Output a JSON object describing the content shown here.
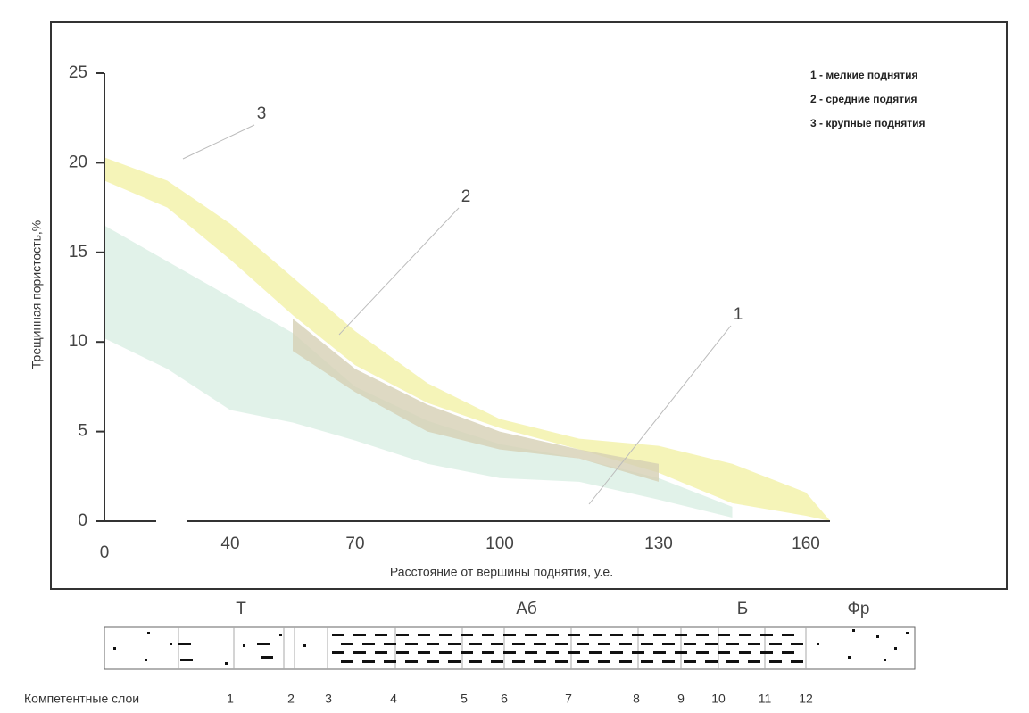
{
  "chart_data": {
    "type": "band",
    "ylabel": "Трещинная пористость,%",
    "xlabel": "Расстояние от вершины поднятия, у.е.",
    "x": [
      0,
      20,
      40,
      55,
      70,
      85,
      100,
      115,
      130,
      145,
      160,
      165
    ],
    "xticks": [
      0,
      40,
      70,
      100,
      130,
      160
    ],
    "ylim": [
      0,
      25
    ],
    "yticks": [
      0,
      5,
      10,
      15,
      20,
      25
    ],
    "series": [
      {
        "name": "1 - мелкие поднятия",
        "color": "#d9efe3",
        "upper": [
          16.5,
          14.5,
          12.5,
          10.5,
          7.5,
          5.6,
          4.3,
          3.5,
          2.4,
          0.8,
          null,
          null
        ],
        "lower": [
          10.2,
          8.5,
          6.2,
          5.5,
          4.5,
          3.2,
          2.4,
          2.2,
          1.2,
          0.2,
          null,
          null
        ]
      },
      {
        "name": "2 - средние подятия",
        "color": "#d6d0b4",
        "upper": [
          null,
          null,
          null,
          11.3,
          8.5,
          6.5,
          5.0,
          4.0,
          3.2,
          null,
          null,
          null
        ],
        "lower": [
          null,
          null,
          null,
          9.5,
          7.2,
          5.0,
          4.0,
          3.5,
          2.2,
          null,
          null,
          null
        ]
      },
      {
        "name": "3 - крупные поднятия",
        "color": "#f3f1a6",
        "upper": [
          20.3,
          19,
          16.6,
          13.6,
          10.6,
          7.7,
          5.7,
          4.6,
          4.2,
          3.2,
          1.6,
          0
        ],
        "lower": [
          19,
          17.5,
          14.6,
          11.5,
          8.7,
          6.6,
          5.2,
          4.0,
          2.7,
          1.0,
          0.3,
          0
        ]
      }
    ],
    "annotations": [
      "1",
      "2",
      "3"
    ],
    "legend": "top-right"
  },
  "lithology": {
    "groups": [
      "Т",
      "Аб",
      "Б",
      "Фр"
    ],
    "row_label": "Компетентные слои",
    "layers": [
      1,
      2,
      3,
      4,
      5,
      6,
      7,
      8,
      9,
      10,
      11,
      12
    ]
  }
}
